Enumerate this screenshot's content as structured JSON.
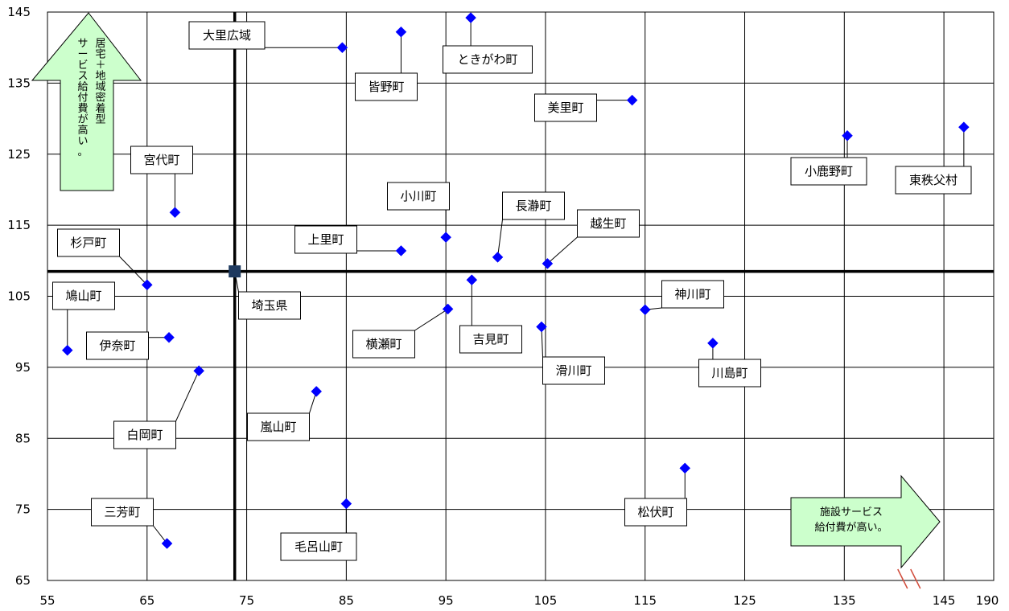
{
  "chart_data": {
    "type": "scatter",
    "xlim": [
      55,
      150
    ],
    "ylim": [
      65,
      145
    ],
    "x_ticks": [
      "55",
      "65",
      "75",
      "85",
      "95",
      "105",
      "115",
      "125",
      "135",
      "145",
      "190"
    ],
    "y_ticks": [
      "65",
      "75",
      "85",
      "95",
      "105",
      "115",
      "125",
      "135",
      "145"
    ],
    "grid": true,
    "axis_break": "between 145 and 190",
    "marker_color": "#0000ff",
    "reference_color": "#1f3a5f",
    "reference_point": {
      "name": "埼玉県",
      "x": 73.8,
      "y": 108.5
    },
    "points": [
      {
        "name": "大里広域",
        "x": 84.6,
        "y": 140.0
      },
      {
        "name": "皆野町",
        "x": 90.5,
        "y": 142.2
      },
      {
        "name": "ときがわ町",
        "x": 97.5,
        "y": 144.2
      },
      {
        "name": "美里町",
        "x": 113.7,
        "y": 132.6
      },
      {
        "name": "小鹿野町",
        "x": 135.3,
        "y": 127.6
      },
      {
        "name": "東秩父村",
        "x": 147.0,
        "y": 128.8
      },
      {
        "name": "宮代町",
        "x": 67.8,
        "y": 116.8
      },
      {
        "name": "小川町",
        "x": 95.0,
        "y": 113.3
      },
      {
        "name": "長瀞町",
        "x": 100.2,
        "y": 110.5
      },
      {
        "name": "越生町",
        "x": 105.2,
        "y": 109.6
      },
      {
        "name": "上里町",
        "x": 90.5,
        "y": 111.4
      },
      {
        "name": "杉戸町",
        "x": 65.0,
        "y": 106.6
      },
      {
        "name": "鳩山町",
        "x": 57.0,
        "y": 97.4
      },
      {
        "name": "伊奈町",
        "x": 67.2,
        "y": 99.2
      },
      {
        "name": "吉見町",
        "x": 97.6,
        "y": 107.3
      },
      {
        "name": "横瀬町",
        "x": 95.2,
        "y": 103.2
      },
      {
        "name": "神川町",
        "x": 115.0,
        "y": 103.1
      },
      {
        "name": "滑川町",
        "x": 104.6,
        "y": 100.7
      },
      {
        "name": "川島町",
        "x": 121.8,
        "y": 98.4
      },
      {
        "name": "白岡町",
        "x": 70.2,
        "y": 94.5
      },
      {
        "name": "嵐山町",
        "x": 82.0,
        "y": 91.6
      },
      {
        "name": "松伏町",
        "x": 119.0,
        "y": 80.8
      },
      {
        "name": "毛呂山町",
        "x": 85.0,
        "y": 75.8
      },
      {
        "name": "三芳町",
        "x": 67.0,
        "y": 70.2
      }
    ],
    "annotations": {
      "up_arrow": [
        "居宅＋地域密着型",
        "サービス給付費が高い。"
      ],
      "right_arrow": [
        "施設サービス",
        "給付費が高い。"
      ]
    }
  }
}
